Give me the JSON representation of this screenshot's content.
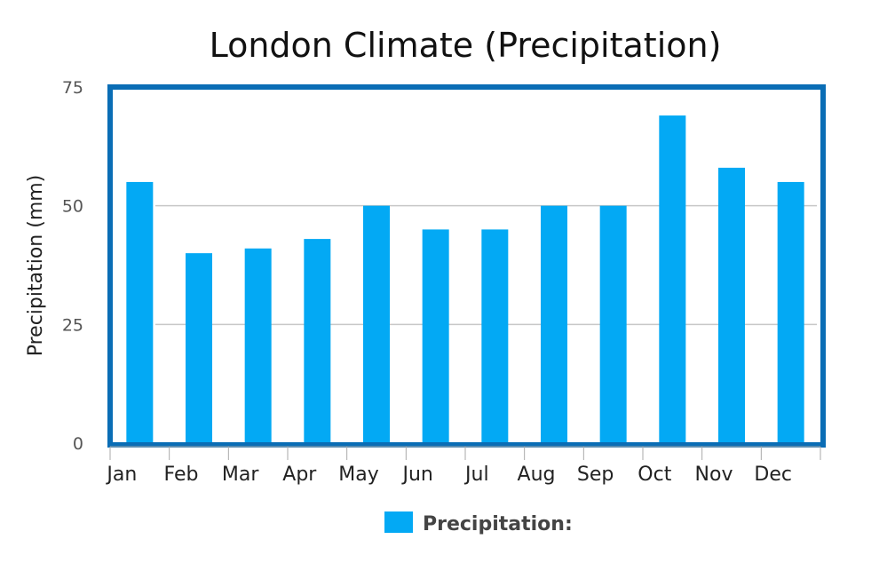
{
  "chart_data": {
    "type": "bar",
    "title": "London Climate (Precipitation)",
    "xlabel": "",
    "ylabel": "Precipitation (mm)",
    "categories": [
      "Jan",
      "Feb",
      "Mar",
      "Apr",
      "May",
      "Jun",
      "Jul",
      "Aug",
      "Sep",
      "Oct",
      "Nov",
      "Dec"
    ],
    "series": [
      {
        "name": "Precipitation:",
        "values": [
          55,
          40,
          41,
          43,
          50,
          45,
          45,
          50,
          50,
          69,
          58,
          55
        ]
      }
    ],
    "ylim": [
      0,
      75
    ],
    "yticks": [
      "0",
      "25",
      "50",
      "75"
    ],
    "grid": true,
    "legend": "bottom-center",
    "colors": {
      "bar": "#03a9f4",
      "frame": "#0a6db5",
      "grid": "#c8c8c8",
      "axis": "#aaaaaa"
    }
  }
}
